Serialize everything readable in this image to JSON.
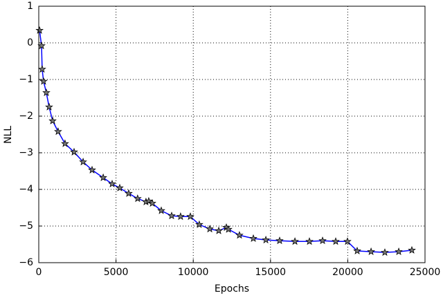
{
  "chart_data": {
    "type": "line",
    "x_label": "Epochs",
    "y_label": "NLL",
    "x": [
      50,
      180,
      220,
      310,
      490,
      670,
      900,
      1250,
      1700,
      2285,
      2870,
      3450,
      4170,
      4750,
      5240,
      5820,
      6400,
      6940,
      7120,
      7350,
      7930,
      8600,
      9180,
      9810,
      10390,
      11070,
      11650,
      12140,
      12280,
      12990,
      13890,
      14700,
      15590,
      16580,
      17520,
      18370,
      19220,
      19980,
      20610,
      21510,
      22400,
      23300,
      24150
    ],
    "series": [
      {
        "color": "#0000ff",
        "marker": "star",
        "values": [
          0.34,
          -0.08,
          -0.72,
          -1.05,
          -1.36,
          -1.75,
          -2.13,
          -2.42,
          -2.75,
          -2.98,
          -3.25,
          -3.47,
          -3.68,
          -3.85,
          -3.96,
          -4.11,
          -4.25,
          -4.34,
          -4.32,
          -4.38,
          -4.58,
          -4.72,
          -4.74,
          -4.74,
          -4.96,
          -5.08,
          -5.13,
          -5.04,
          -5.09,
          -5.25,
          -5.34,
          -5.38,
          -5.4,
          -5.42,
          -5.42,
          -5.4,
          -5.42,
          -5.42,
          -5.68,
          -5.7,
          -5.72,
          -5.7,
          -5.66
        ]
      }
    ],
    "xlim": [
      0,
      25000
    ],
    "xticks": [
      0,
      5000,
      10000,
      15000,
      20000,
      25000
    ],
    "ylim": [
      -6,
      1
    ],
    "yticks": [
      {
        "value": -6,
        "label": "−6"
      },
      {
        "value": -5,
        "label": "−5"
      },
      {
        "value": -4,
        "label": "−4"
      },
      {
        "value": -3,
        "label": "−3"
      },
      {
        "value": -2,
        "label": "−2"
      },
      {
        "value": -1,
        "label": "−1"
      },
      0,
      1
    ],
    "grid": true
  }
}
